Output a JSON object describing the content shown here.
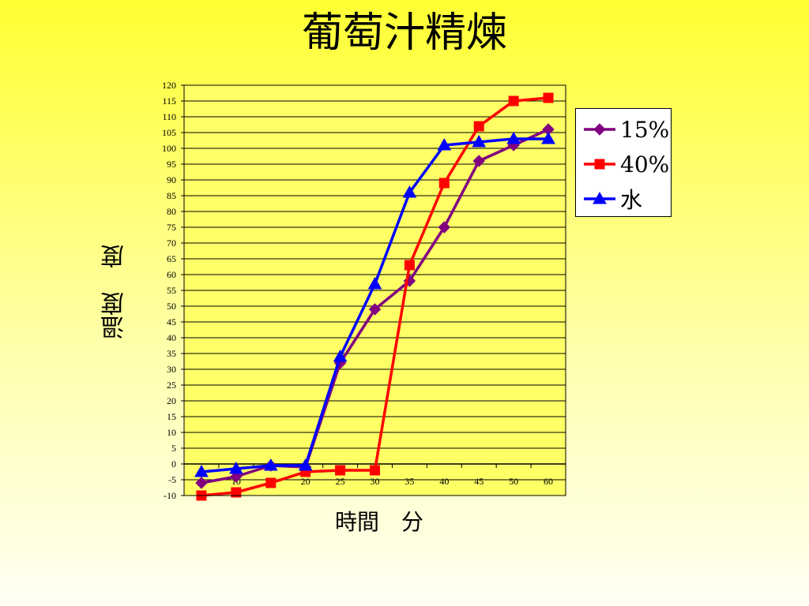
{
  "title": "葡萄汁精煉",
  "chart_data": {
    "type": "line",
    "title": "葡萄汁精煉",
    "xlabel": "時間　分",
    "ylabel": "溫度　度",
    "categories": [
      "5",
      "10",
      "15",
      "20",
      "25",
      "30",
      "35",
      "40",
      "45",
      "50",
      "60"
    ],
    "ylim": [
      -10,
      120
    ],
    "ytick_step": 5,
    "grid": "horizontal",
    "legend_position": "right",
    "series": [
      {
        "name": "15%",
        "color": "#800080",
        "marker": "diamond",
        "values": [
          -6,
          -4,
          -0.5,
          -1,
          32,
          49,
          58,
          75,
          96,
          101,
          106
        ]
      },
      {
        "name": "40%",
        "color": "#ff0000",
        "marker": "square",
        "values": [
          -10,
          -9,
          -6,
          -2.5,
          -2,
          -2,
          63,
          89,
          107,
          115,
          116
        ]
      },
      {
        "name": "水",
        "color": "#0000ff",
        "marker": "triangle",
        "values": [
          -2.5,
          -1.5,
          -0.5,
          -0.5,
          34,
          57,
          86,
          101,
          102,
          103,
          103
        ]
      }
    ]
  }
}
